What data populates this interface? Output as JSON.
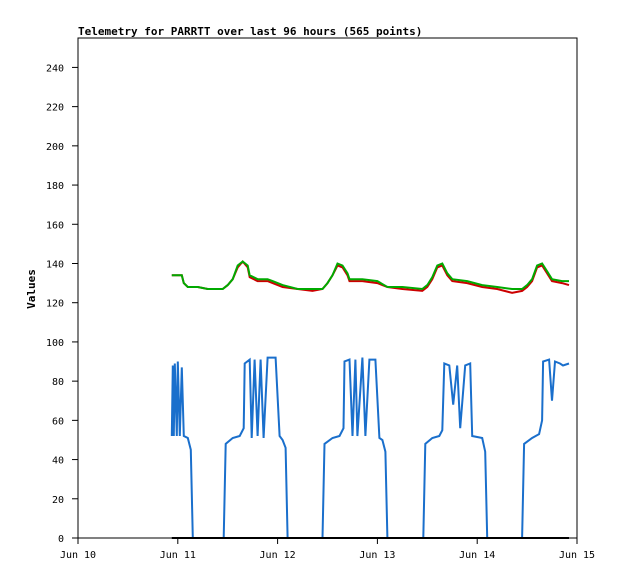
{
  "chart_data": {
    "type": "line",
    "title": "Telemetry for PARRTT over last 96 hours (565 points)",
    "ylabel": "Values",
    "xlabel": "",
    "ylim": [
      0,
      255
    ],
    "xlim": [
      0,
      5
    ],
    "yticks": [
      0,
      20,
      40,
      60,
      80,
      100,
      120,
      140,
      160,
      180,
      200,
      220,
      240
    ],
    "xticks": [
      {
        "x": 0,
        "label": "Jun 10"
      },
      {
        "x": 1,
        "label": "Jun 11"
      },
      {
        "x": 2,
        "label": "Jun 12"
      },
      {
        "x": 3,
        "label": "Jun 13"
      },
      {
        "x": 4,
        "label": "Jun 14"
      },
      {
        "x": 5,
        "label": "Jun 15"
      }
    ],
    "grid": false,
    "series": [
      {
        "color": "#cc0000",
        "points": [
          [
            0.94,
            134
          ],
          [
            1.04,
            134
          ],
          [
            1.06,
            130
          ],
          [
            1.1,
            128
          ],
          [
            1.2,
            128
          ],
          [
            1.3,
            127
          ],
          [
            1.45,
            127
          ],
          [
            1.5,
            129
          ],
          [
            1.55,
            132
          ],
          [
            1.6,
            138
          ],
          [
            1.65,
            141
          ],
          [
            1.7,
            138
          ],
          [
            1.72,
            133
          ],
          [
            1.8,
            131
          ],
          [
            1.9,
            131
          ],
          [
            1.95,
            130
          ],
          [
            2.05,
            128
          ],
          [
            2.2,
            127
          ],
          [
            2.35,
            126
          ],
          [
            2.45,
            127
          ],
          [
            2.5,
            130
          ],
          [
            2.55,
            134
          ],
          [
            2.6,
            139
          ],
          [
            2.65,
            138
          ],
          [
            2.7,
            134
          ],
          [
            2.72,
            131
          ],
          [
            2.85,
            131
          ],
          [
            3.0,
            130
          ],
          [
            3.1,
            128
          ],
          [
            3.25,
            127
          ],
          [
            3.45,
            126
          ],
          [
            3.5,
            128
          ],
          [
            3.55,
            132
          ],
          [
            3.6,
            138
          ],
          [
            3.65,
            139
          ],
          [
            3.7,
            134
          ],
          [
            3.75,
            131
          ],
          [
            3.9,
            130
          ],
          [
            4.05,
            128
          ],
          [
            4.2,
            127
          ],
          [
            4.35,
            125
          ],
          [
            4.45,
            126
          ],
          [
            4.5,
            128
          ],
          [
            4.55,
            131
          ],
          [
            4.6,
            138
          ],
          [
            4.65,
            139
          ],
          [
            4.7,
            135
          ],
          [
            4.75,
            131
          ],
          [
            4.85,
            130
          ],
          [
            4.92,
            129
          ]
        ]
      },
      {
        "color": "#00aa00",
        "points": [
          [
            0.94,
            134
          ],
          [
            1.04,
            134
          ],
          [
            1.06,
            130
          ],
          [
            1.1,
            128
          ],
          [
            1.2,
            128
          ],
          [
            1.3,
            127
          ],
          [
            1.45,
            127
          ],
          [
            1.5,
            129
          ],
          [
            1.55,
            132
          ],
          [
            1.6,
            139
          ],
          [
            1.65,
            141
          ],
          [
            1.7,
            139
          ],
          [
            1.72,
            134
          ],
          [
            1.8,
            132
          ],
          [
            1.9,
            132
          ],
          [
            1.95,
            131
          ],
          [
            2.05,
            129
          ],
          [
            2.2,
            127
          ],
          [
            2.35,
            127
          ],
          [
            2.45,
            127
          ],
          [
            2.5,
            130
          ],
          [
            2.55,
            134
          ],
          [
            2.6,
            140
          ],
          [
            2.65,
            139
          ],
          [
            2.7,
            135
          ],
          [
            2.72,
            132
          ],
          [
            2.85,
            132
          ],
          [
            3.0,
            131
          ],
          [
            3.1,
            128
          ],
          [
            3.25,
            128
          ],
          [
            3.45,
            127
          ],
          [
            3.5,
            129
          ],
          [
            3.55,
            133
          ],
          [
            3.6,
            139
          ],
          [
            3.65,
            140
          ],
          [
            3.7,
            135
          ],
          [
            3.75,
            132
          ],
          [
            3.9,
            131
          ],
          [
            4.05,
            129
          ],
          [
            4.2,
            128
          ],
          [
            4.35,
            127
          ],
          [
            4.45,
            127
          ],
          [
            4.5,
            129
          ],
          [
            4.55,
            132
          ],
          [
            4.6,
            139
          ],
          [
            4.65,
            140
          ],
          [
            4.7,
            136
          ],
          [
            4.75,
            132
          ],
          [
            4.85,
            131
          ],
          [
            4.92,
            131
          ]
        ]
      },
      {
        "color": "#1a6fcc",
        "points": [
          [
            0.94,
            52
          ],
          [
            0.95,
            88
          ],
          [
            0.96,
            52
          ],
          [
            0.97,
            89
          ],
          [
            0.99,
            52
          ],
          [
            1.0,
            90
          ],
          [
            1.02,
            52
          ],
          [
            1.04,
            87
          ],
          [
            1.06,
            52
          ],
          [
            1.1,
            51
          ],
          [
            1.13,
            45
          ],
          [
            1.15,
            0
          ],
          [
            1.46,
            0
          ],
          [
            1.48,
            48
          ],
          [
            1.55,
            51
          ],
          [
            1.62,
            52
          ],
          [
            1.66,
            56
          ],
          [
            1.67,
            89
          ],
          [
            1.72,
            91
          ],
          [
            1.74,
            51
          ],
          [
            1.77,
            91
          ],
          [
            1.8,
            52
          ],
          [
            1.83,
            91
          ],
          [
            1.86,
            51
          ],
          [
            1.9,
            92
          ],
          [
            1.98,
            92
          ],
          [
            2.02,
            52
          ],
          [
            2.05,
            50
          ],
          [
            2.08,
            46
          ],
          [
            2.1,
            0
          ],
          [
            2.45,
            0
          ],
          [
            2.47,
            48
          ],
          [
            2.55,
            51
          ],
          [
            2.62,
            52
          ],
          [
            2.66,
            56
          ],
          [
            2.67,
            90
          ],
          [
            2.72,
            91
          ],
          [
            2.75,
            52
          ],
          [
            2.78,
            91
          ],
          [
            2.8,
            52
          ],
          [
            2.85,
            92
          ],
          [
            2.88,
            52
          ],
          [
            2.92,
            91
          ],
          [
            2.98,
            91
          ],
          [
            3.02,
            51
          ],
          [
            3.05,
            50
          ],
          [
            3.08,
            44
          ],
          [
            3.1,
            0
          ],
          [
            3.46,
            0
          ],
          [
            3.48,
            48
          ],
          [
            3.55,
            51
          ],
          [
            3.62,
            52
          ],
          [
            3.65,
            55
          ],
          [
            3.67,
            89
          ],
          [
            3.72,
            88
          ],
          [
            3.76,
            68
          ],
          [
            3.8,
            88
          ],
          [
            3.83,
            56
          ],
          [
            3.88,
            88
          ],
          [
            3.93,
            89
          ],
          [
            3.95,
            52
          ],
          [
            4.05,
            51
          ],
          [
            4.08,
            44
          ],
          [
            4.1,
            0
          ],
          [
            4.45,
            0
          ],
          [
            4.47,
            48
          ],
          [
            4.55,
            51
          ],
          [
            4.62,
            53
          ],
          [
            4.65,
            60
          ],
          [
            4.66,
            90
          ],
          [
            4.72,
            91
          ],
          [
            4.75,
            70
          ],
          [
            4.78,
            90
          ],
          [
            4.83,
            89
          ],
          [
            4.86,
            88
          ],
          [
            4.92,
            89
          ]
        ]
      },
      {
        "color": "#000000",
        "points": [
          [
            0.94,
            0
          ],
          [
            4.92,
            0
          ]
        ]
      }
    ]
  }
}
